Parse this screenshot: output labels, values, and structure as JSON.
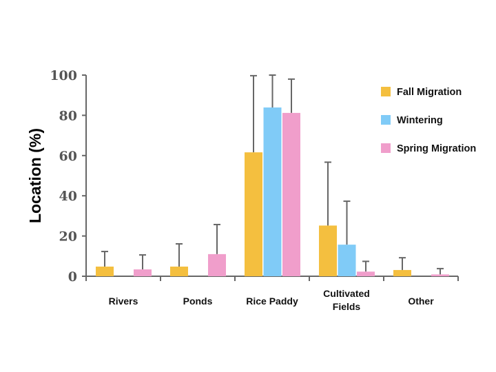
{
  "chart_data": {
    "type": "bar",
    "ylabel": "Location (%)",
    "xlabel": "",
    "ylim": [
      0,
      100
    ],
    "yticks": [
      0,
      20,
      40,
      60,
      80,
      100
    ],
    "categories": [
      "Rivers",
      "Ponds",
      "Rice Paddy",
      "Cultivated Fields",
      "Other"
    ],
    "legend_position": "right",
    "grid": false,
    "series": [
      {
        "name": "Fall Migration",
        "color": "#F4BF3F",
        "values": [
          4.8,
          4.8,
          61.6,
          25.2,
          3.1
        ],
        "error_upper": [
          12.3,
          16.1,
          99.7,
          56.7,
          9.2
        ]
      },
      {
        "name": "Wintering",
        "color": "#80CBF7",
        "values": [
          0,
          0,
          83.9,
          15.7,
          0
        ],
        "error_upper": [
          null,
          null,
          100,
          37.3,
          null
        ]
      },
      {
        "name": "Spring Migration",
        "color": "#F09ECB",
        "values": [
          3.4,
          11.0,
          81.2,
          2.3,
          0.9
        ],
        "error_upper": [
          10.6,
          25.7,
          98.0,
          7.4,
          3.8
        ]
      }
    ]
  }
}
